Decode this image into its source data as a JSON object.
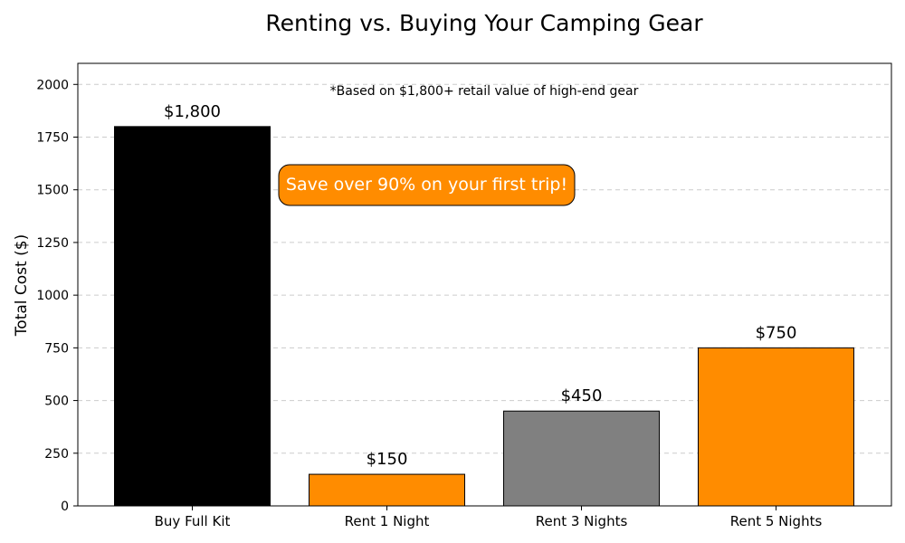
{
  "chart_data": {
    "type": "bar",
    "title": "Renting vs. Buying Your Camping Gear",
    "xlabel": "",
    "ylabel": "Total Cost ($)",
    "ylim": [
      0,
      2100
    ],
    "yticks": [
      0,
      250,
      500,
      750,
      1000,
      1250,
      1500,
      1750,
      2000
    ],
    "categories": [
      "Buy Full Kit",
      "Rent 1 Night",
      "Rent 3 Nights",
      "Rent 5 Nights"
    ],
    "values": [
      1800,
      150,
      450,
      750
    ],
    "data_labels": [
      "$1,800",
      "$150",
      "$450",
      "$750"
    ],
    "bar_colors": [
      "#000000",
      "#ff8c00",
      "#808080",
      "#ff8c00"
    ],
    "grid": "y-dashed",
    "annotations": {
      "note": "*Based on $1,800+ retail value of high-end gear",
      "callout": "Save over 90% on your first trip!"
    },
    "callout_color": "#ff8c00"
  }
}
